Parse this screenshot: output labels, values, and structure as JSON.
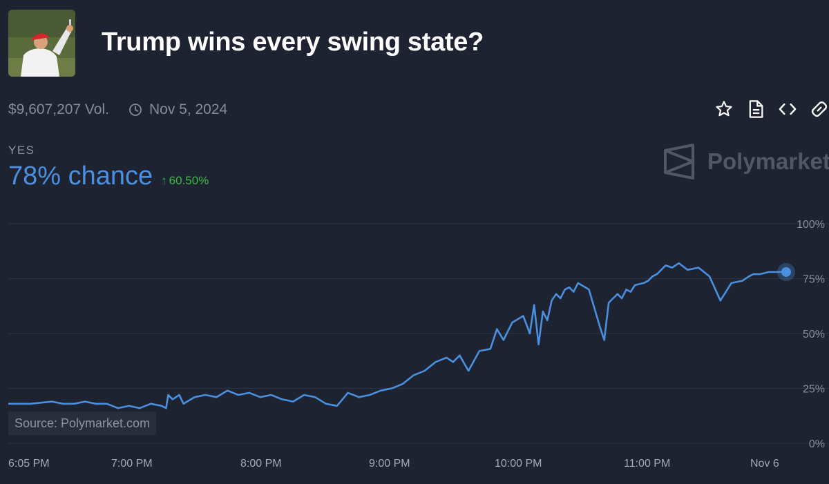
{
  "market": {
    "title": "Trump wins every swing state?",
    "avatar_icon": "golfer-photo",
    "volume": "$9,607,207 Vol.",
    "date": "Nov 5, 2024"
  },
  "actions": [
    {
      "icon": "star-icon"
    },
    {
      "icon": "document-icon"
    },
    {
      "icon": "embed-code-icon"
    },
    {
      "icon": "link-icon"
    }
  ],
  "outcome": {
    "label": "YES",
    "chance": "78% chance",
    "change": "60.50%",
    "change_color": "#3dba4d",
    "accent": "#4a8fe0"
  },
  "brand": {
    "name": "Polymarket"
  },
  "source_text": "Source: Polymarket.com",
  "chart_data": {
    "type": "line",
    "x_tick_labels": [
      "6:05 PM",
      "7:00 PM",
      "8:00 PM",
      "9:00 PM",
      "10:00 PM",
      "11:00 PM",
      "Nov 6"
    ],
    "y_tick_labels": [
      "100%",
      "75%",
      "50%",
      "25%",
      "0%"
    ],
    "ylim": [
      0,
      100
    ],
    "x_unit": "minutes",
    "xlim": [
      0,
      355
    ],
    "grid": true,
    "line_color": "#4a8fe0",
    "series": [
      {
        "x": [
          0,
          10,
          20,
          25,
          30,
          35,
          40,
          45,
          50,
          55,
          60,
          65,
          70,
          72,
          73,
          75,
          78,
          80,
          85,
          90,
          95,
          100,
          105,
          110,
          115,
          120,
          125,
          130,
          135,
          140,
          145,
          150,
          155,
          160,
          165,
          170,
          175,
          180,
          185,
          190,
          195,
          200,
          203,
          206,
          210,
          215,
          220,
          223,
          226,
          230,
          235,
          238,
          240,
          242,
          244,
          246,
          248,
          250,
          252,
          254,
          256,
          258,
          260,
          265,
          270,
          272,
          274,
          276,
          278,
          280,
          282,
          284,
          286,
          290,
          292,
          294,
          296,
          298,
          300,
          303,
          306,
          310,
          315,
          320,
          325,
          330,
          335,
          338,
          340,
          343,
          347,
          350,
          355
        ],
        "values": [
          18,
          18,
          19,
          18,
          18,
          19,
          18,
          18,
          16,
          17,
          16,
          18,
          17,
          16,
          22,
          20,
          22,
          18,
          21,
          22,
          21,
          24,
          22,
          23,
          21,
          22,
          20,
          19,
          22,
          21,
          18,
          17,
          23,
          21,
          22,
          24,
          25,
          27,
          31,
          33,
          37,
          39,
          37,
          40,
          33,
          42,
          43,
          52,
          47,
          55,
          58,
          50,
          63,
          45,
          60,
          56,
          65,
          68,
          66,
          70,
          71,
          69,
          73,
          70,
          53,
          47,
          64,
          66,
          68,
          66,
          70,
          69,
          72,
          73,
          74,
          76,
          77,
          79,
          81,
          80,
          82,
          79,
          80,
          76,
          65,
          73,
          74,
          76,
          77,
          77,
          78,
          78,
          78
        ]
      }
    ]
  }
}
